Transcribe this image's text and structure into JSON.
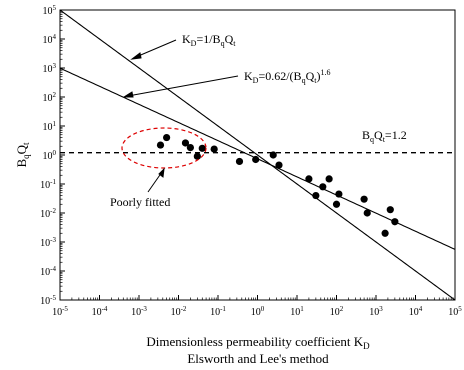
{
  "chart_data": {
    "type": "scatter",
    "xscale": "log",
    "yscale": "log",
    "xlim": [
      1e-05,
      100000.0
    ],
    "ylim": [
      1e-05,
      100000.0
    ],
    "x_ticks": [
      {
        "base": "10",
        "exp": "-5"
      },
      {
        "base": "10",
        "exp": "-4"
      },
      {
        "base": "10",
        "exp": "-3"
      },
      {
        "base": "10",
        "exp": "-2"
      },
      {
        "base": "10",
        "exp": "-1"
      },
      {
        "base": "10",
        "exp": "0"
      },
      {
        "base": "10",
        "exp": "1"
      },
      {
        "base": "10",
        "exp": "2"
      },
      {
        "base": "10",
        "exp": "3"
      },
      {
        "base": "10",
        "exp": "4"
      },
      {
        "base": "10",
        "exp": "5"
      }
    ],
    "y_ticks": [
      {
        "base": "10",
        "exp": "5"
      },
      {
        "base": "10",
        "exp": "4"
      },
      {
        "base": "10",
        "exp": "3"
      },
      {
        "base": "10",
        "exp": "2"
      },
      {
        "base": "10",
        "exp": "1"
      },
      {
        "base": "10",
        "exp": "0"
      },
      {
        "base": "10",
        "exp": "-1"
      },
      {
        "base": "10",
        "exp": "-2"
      },
      {
        "base": "10",
        "exp": "-3"
      },
      {
        "base": "10",
        "exp": "-4"
      },
      {
        "base": "10",
        "exp": "-5"
      }
    ],
    "xlabel_line1": "Dimensionless permeability coefficient K",
    "xlabel_line1_sub": "D",
    "xlabel_line2": "Elsworth and Lee's method",
    "ylabel": {
      "a": "B",
      "a_sub": "q",
      "b": "Q",
      "b_sub": "t"
    },
    "points": [
      {
        "x": 0.0035,
        "y": 2.2
      },
      {
        "x": 0.005,
        "y": 4.0
      },
      {
        "x": 0.015,
        "y": 2.6
      },
      {
        "x": 0.02,
        "y": 1.8
      },
      {
        "x": 0.03,
        "y": 0.9
      },
      {
        "x": 0.04,
        "y": 1.7
      },
      {
        "x": 0.08,
        "y": 1.6
      },
      {
        "x": 0.35,
        "y": 0.6
      },
      {
        "x": 0.9,
        "y": 0.7
      },
      {
        "x": 2.5,
        "y": 1.0
      },
      {
        "x": 3.5,
        "y": 0.45
      },
      {
        "x": 20,
        "y": 0.15
      },
      {
        "x": 30,
        "y": 0.04
      },
      {
        "x": 45,
        "y": 0.08
      },
      {
        "x": 65,
        "y": 0.15
      },
      {
        "x": 100,
        "y": 0.02
      },
      {
        "x": 115,
        "y": 0.045
      },
      {
        "x": 500,
        "y": 0.03
      },
      {
        "x": 600,
        "y": 0.01
      },
      {
        "x": 1700,
        "y": 0.002
      },
      {
        "x": 2300,
        "y": 0.013
      },
      {
        "x": 3000,
        "y": 0.005
      }
    ],
    "lines": [
      {
        "equation": "y = 1/x",
        "coef": 1,
        "power": 1
      },
      {
        "equation": "y = (0.62/x)^(1/1.6)",
        "coef": 0.62,
        "power": 0.625
      }
    ],
    "hline_y": 1.2,
    "annotations": {
      "kd1": {
        "lhs": "K",
        "lhs_sub": "D",
        "rhs": "=1/B",
        "rhs_sub": "q",
        "rhs2": "Q",
        "rhs2_sub": "t"
      },
      "kd2": {
        "lhs": "K",
        "lhs_sub": "D",
        "rhs": "=0.62/(B",
        "rhs_sub": "q",
        "rhs2": "Q",
        "rhs2_sub": "t",
        "tail": ")",
        "tail_sup": "1.6"
      },
      "bq": {
        "a": "B",
        "a_sub": "q",
        "b": "Q",
        "b_sub": "t",
        "rhs": "=1.2"
      },
      "poorly": "Poorly fitted"
    }
  }
}
